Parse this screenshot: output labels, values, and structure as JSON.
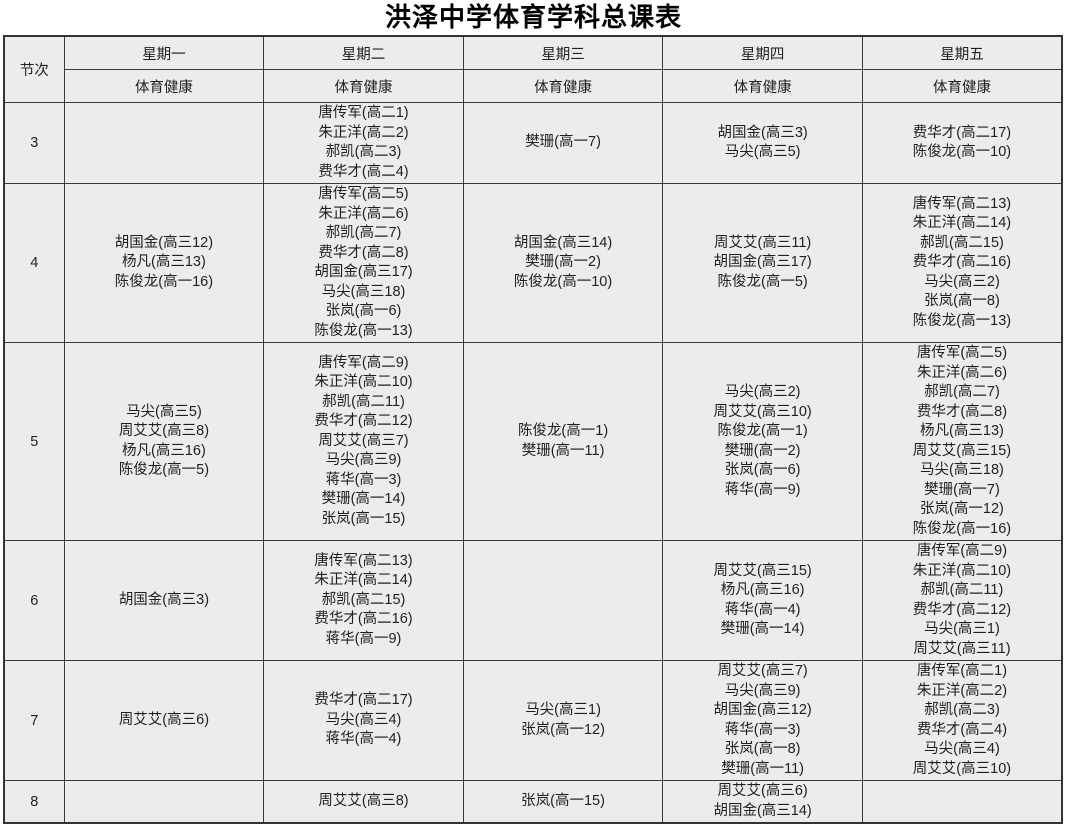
{
  "title": "洪泽中学体育学科总课表",
  "table": {
    "period_header": "节次",
    "subject_header": "体育健康",
    "days": [
      "星期一",
      "星期二",
      "星期三",
      "星期四",
      "星期五"
    ],
    "rows": [
      {
        "period": "3",
        "cells": [
          [],
          [
            "唐传军(高二1)",
            "朱正洋(高二2)",
            "郝凯(高二3)",
            "费华才(高二4)"
          ],
          [
            "樊珊(高一7)"
          ],
          [
            "胡国金(高三3)",
            "马尖(高三5)"
          ],
          [
            "费华才(高二17)",
            "陈俊龙(高一10)"
          ]
        ]
      },
      {
        "period": "4",
        "cells": [
          [
            "胡国金(高三12)",
            "杨凡(高三13)",
            "陈俊龙(高一16)"
          ],
          [
            "唐传军(高二5)",
            "朱正洋(高二6)",
            "郝凯(高二7)",
            "费华才(高二8)",
            "胡国金(高三17)",
            "马尖(高三18)",
            "张岚(高一6)",
            "陈俊龙(高一13)"
          ],
          [
            "胡国金(高三14)",
            "樊珊(高一2)",
            "陈俊龙(高一10)"
          ],
          [
            "周艾艾(高三11)",
            "胡国金(高三17)",
            "陈俊龙(高一5)"
          ],
          [
            "唐传军(高二13)",
            "朱正洋(高二14)",
            "郝凯(高二15)",
            "费华才(高二16)",
            "马尖(高三2)",
            "张岚(高一8)",
            "陈俊龙(高一13)"
          ]
        ]
      },
      {
        "period": "5",
        "cells": [
          [
            "马尖(高三5)",
            "周艾艾(高三8)",
            "杨凡(高三16)",
            "陈俊龙(高一5)"
          ],
          [
            "唐传军(高二9)",
            "朱正洋(高二10)",
            "郝凯(高二11)",
            "费华才(高二12)",
            "周艾艾(高三7)",
            "马尖(高三9)",
            "蒋华(高一3)",
            "樊珊(高一14)",
            "张岚(高一15)"
          ],
          [
            "陈俊龙(高一1)",
            "樊珊(高一11)"
          ],
          [
            "马尖(高三2)",
            "周艾艾(高三10)",
            "陈俊龙(高一1)",
            "樊珊(高一2)",
            "张岚(高一6)",
            "蒋华(高一9)"
          ],
          [
            "唐传军(高二5)",
            "朱正洋(高二6)",
            "郝凯(高二7)",
            "费华才(高二8)",
            "杨凡(高三13)",
            "周艾艾(高三15)",
            "马尖(高三18)",
            "樊珊(高一7)",
            "张岚(高一12)",
            "陈俊龙(高一16)"
          ]
        ]
      },
      {
        "period": "6",
        "cells": [
          [
            "胡国金(高三3)"
          ],
          [
            "唐传军(高二13)",
            "朱正洋(高二14)",
            "郝凯(高二15)",
            "费华才(高二16)",
            "蒋华(高一9)"
          ],
          [],
          [
            "周艾艾(高三15)",
            "杨凡(高三16)",
            "蒋华(高一4)",
            "樊珊(高一14)"
          ],
          [
            "唐传军(高二9)",
            "朱正洋(高二10)",
            "郝凯(高二11)",
            "费华才(高二12)",
            "马尖(高三1)",
            "周艾艾(高三11)"
          ]
        ]
      },
      {
        "period": "7",
        "cells": [
          [
            "周艾艾(高三6)"
          ],
          [
            "费华才(高二17)",
            "马尖(高三4)",
            "蒋华(高一4)"
          ],
          [
            "马尖(高三1)",
            "张岚(高一12)"
          ],
          [
            "周艾艾(高三7)",
            "马尖(高三9)",
            "胡国金(高三12)",
            "蒋华(高一3)",
            "张岚(高一8)",
            "樊珊(高一11)"
          ],
          [
            "唐传军(高二1)",
            "朱正洋(高二2)",
            "郝凯(高二3)",
            "费华才(高二4)",
            "马尖(高三4)",
            "周艾艾(高三10)"
          ]
        ]
      },
      {
        "period": "8",
        "cells": [
          [],
          [
            "周艾艾(高三8)"
          ],
          [
            "张岚(高一15)"
          ],
          [
            "周艾艾(高三6)",
            "胡国金(高三14)"
          ],
          []
        ]
      }
    ]
  },
  "colors": {
    "cell_background": "#ececec",
    "inner_border": "#3a3a3a",
    "outer_border": "#333333",
    "text": "#1f1f1f",
    "title_text": "#000000",
    "page_background": "#ffffff"
  }
}
